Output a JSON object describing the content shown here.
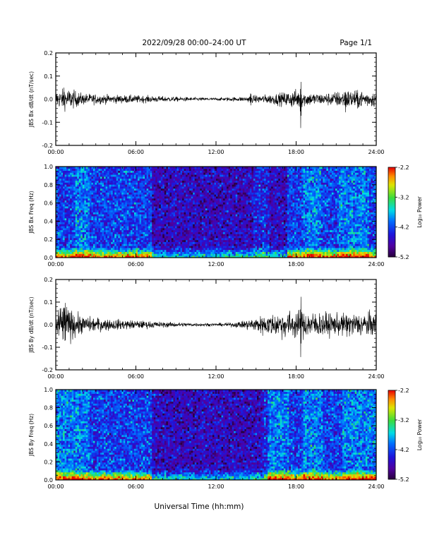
{
  "header": {
    "title": "2022/09/28  00:00–24:00 UT",
    "page": "Page 1/1"
  },
  "x_axis_title": "Universal Time (hh:mm)",
  "chart_data": [
    {
      "type": "line",
      "ylabel": "JBS Bx dB/dt (nT/sec)",
      "xlim": [
        0,
        24
      ],
      "ylim": [
        -0.2,
        0.2
      ],
      "x_ticks": [
        "00:00",
        "06:00",
        "12:00",
        "18:00",
        "24:00"
      ],
      "y_ticks": [
        "0.2",
        "0.1",
        "0.0",
        "-0.1",
        "-0.2"
      ],
      "envelope": [
        [
          0,
          0.018
        ],
        [
          0.5,
          0.02
        ],
        [
          1,
          0.022
        ],
        [
          2,
          0.012
        ],
        [
          4,
          0.009
        ],
        [
          6,
          0.008
        ],
        [
          8,
          0.006
        ],
        [
          10,
          0.004
        ],
        [
          12,
          0.003
        ],
        [
          14,
          0.005
        ],
        [
          15,
          0.008
        ],
        [
          16,
          0.01
        ],
        [
          17,
          0.014
        ],
        [
          18,
          0.02
        ],
        [
          19,
          0.014
        ],
        [
          20,
          0.012
        ],
        [
          21,
          0.016
        ],
        [
          22,
          0.02
        ],
        [
          23,
          0.018
        ],
        [
          24,
          0.016
        ]
      ],
      "spikes": [
        [
          0.6,
          0.05,
          -0.04
        ],
        [
          14.6,
          0.03,
          -0.03
        ],
        [
          18.35,
          0.09,
          -0.14
        ],
        [
          21.7,
          0.04,
          -0.06
        ],
        [
          22.6,
          0.05,
          -0.05
        ]
      ]
    },
    {
      "type": "heatmap",
      "ylabel": "JBS Bx Freq (Hz)",
      "xlim": [
        0,
        24
      ],
      "ylim": [
        0.0,
        1.0
      ],
      "x_ticks": [
        "00:00",
        "06:00",
        "12:00",
        "18:00",
        "24:00"
      ],
      "y_ticks": [
        "1.0",
        "0.8",
        "0.6",
        "0.4",
        "0.2",
        "0.0"
      ],
      "colorbar": {
        "label": "Log₁₀ Power",
        "ticks": [
          "-2.2",
          "-3.2",
          "-4.2",
          "-5.2"
        ],
        "range": [
          -5.2,
          -2.2
        ]
      },
      "quiet_interval": [
        7.2,
        17.3
      ],
      "active_bands": [
        [
          1.5,
          2.5
        ],
        [
          14.8,
          16.0
        ],
        [
          18.5,
          19.8
        ],
        [
          21.2,
          23.5
        ]
      ]
    },
    {
      "type": "line",
      "ylabel": "JBS By dB/dt (nT/sec)",
      "xlim": [
        0,
        24
      ],
      "ylim": [
        -0.2,
        0.2
      ],
      "x_ticks": [
        "00:00",
        "06:00",
        "12:00",
        "18:00",
        "24:00"
      ],
      "y_ticks": [
        "0.2",
        "0.1",
        "0.0",
        "-0.1",
        "-0.2"
      ],
      "envelope": [
        [
          0,
          0.04
        ],
        [
          0.5,
          0.045
        ],
        [
          1,
          0.035
        ],
        [
          2,
          0.018
        ],
        [
          4,
          0.012
        ],
        [
          6,
          0.009
        ],
        [
          8,
          0.006
        ],
        [
          10,
          0.004
        ],
        [
          12,
          0.003
        ],
        [
          13,
          0.004
        ],
        [
          14,
          0.008
        ],
        [
          15,
          0.016
        ],
        [
          16,
          0.022
        ],
        [
          17,
          0.028
        ],
        [
          18,
          0.03
        ],
        [
          19,
          0.028
        ],
        [
          20,
          0.026
        ],
        [
          21,
          0.022
        ],
        [
          22,
          0.024
        ],
        [
          23,
          0.026
        ],
        [
          24,
          0.024
        ]
      ],
      "spikes": [
        [
          0.7,
          0.1,
          -0.08
        ],
        [
          18.35,
          0.15,
          -0.16
        ],
        [
          15.5,
          0.04,
          -0.05
        ],
        [
          21.8,
          0.05,
          -0.06
        ]
      ]
    },
    {
      "type": "heatmap",
      "ylabel": "JBS By Freq (Hz)",
      "xlim": [
        0,
        24
      ],
      "ylim": [
        0.0,
        1.0
      ],
      "x_ticks": [
        "00:00",
        "06:00",
        "12:00",
        "18:00",
        "24:00"
      ],
      "y_ticks": [
        "1.0",
        "0.8",
        "0.6",
        "0.4",
        "0.2",
        "0.0"
      ],
      "colorbar": {
        "label": "Log₁₀ Power",
        "ticks": [
          "-2.2",
          "-3.2",
          "-4.2",
          "-5.2"
        ],
        "range": [
          -5.2,
          -2.2
        ]
      },
      "quiet_interval": [
        7.2,
        15.8
      ],
      "active_bands": [
        [
          0.0,
          2.5
        ],
        [
          15.5,
          17.5
        ],
        [
          18.5,
          20.0
        ],
        [
          21.5,
          24.0
        ]
      ]
    }
  ]
}
